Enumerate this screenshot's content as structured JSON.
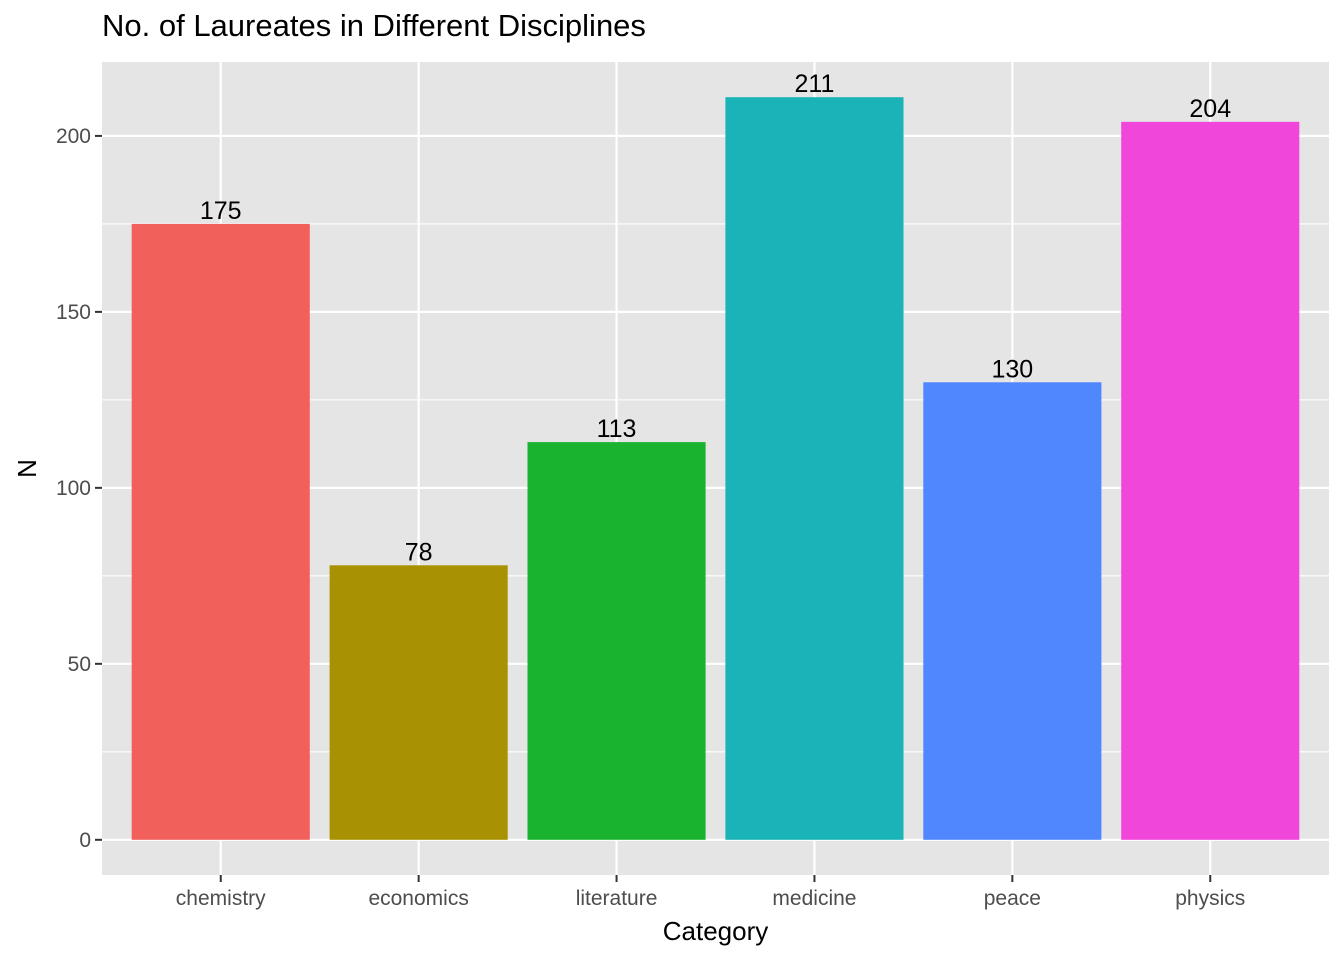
{
  "chart_data": {
    "type": "bar",
    "title": "No. of Laureates in Different Disciplines",
    "xlabel": "Category",
    "ylabel": "N",
    "categories": [
      "chemistry",
      "economics",
      "literature",
      "medicine",
      "peace",
      "physics"
    ],
    "values": [
      175,
      78,
      113,
      211,
      130,
      204
    ],
    "data_labels": [
      "175",
      "78",
      "113",
      "211",
      "130",
      "204"
    ],
    "colors": [
      "#F2605C",
      "#A89204",
      "#1AB32F",
      "#1AB3B8",
      "#5087FF",
      "#F046D9"
    ],
    "ylim": [
      -10,
      221
    ],
    "yticks": [
      0,
      50,
      100,
      150,
      200
    ],
    "ytick_labels": [
      "0",
      "50",
      "100",
      "150",
      "200"
    ],
    "grid": true,
    "legend": "none",
    "panel_background": "#E5E5E5",
    "grid_color": "#FFFFFF"
  }
}
